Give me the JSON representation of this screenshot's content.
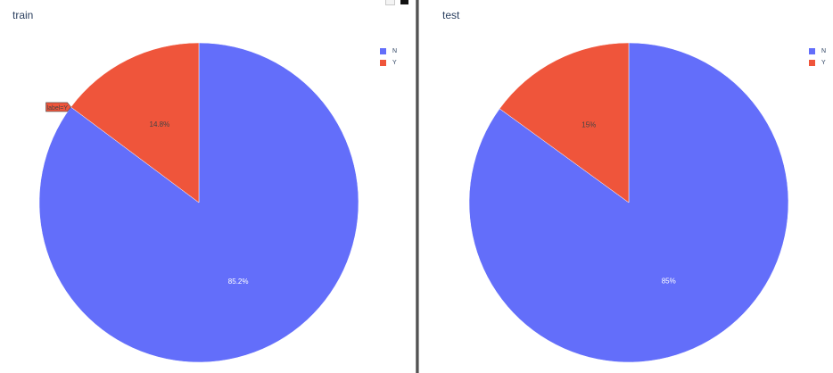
{
  "chart_data": [
    {
      "type": "pie",
      "title": "train",
      "categories": [
        "N",
        "Y"
      ],
      "values": [
        85.2,
        14.8
      ],
      "labels": [
        "85.2%",
        "14.8%"
      ],
      "colors": [
        "#636efa",
        "#ef553b"
      ],
      "legend": "top-right",
      "hover_label": "label=Y"
    },
    {
      "type": "pie",
      "title": "test",
      "categories": [
        "N",
        "Y"
      ],
      "values": [
        85,
        15
      ],
      "labels": [
        "85%",
        "15%"
      ],
      "colors": [
        "#636efa",
        "#ef553b"
      ],
      "legend": "top-right"
    }
  ],
  "toolbar": {
    "icons": [
      "camera-icon",
      "plotly-logo-icon"
    ]
  }
}
